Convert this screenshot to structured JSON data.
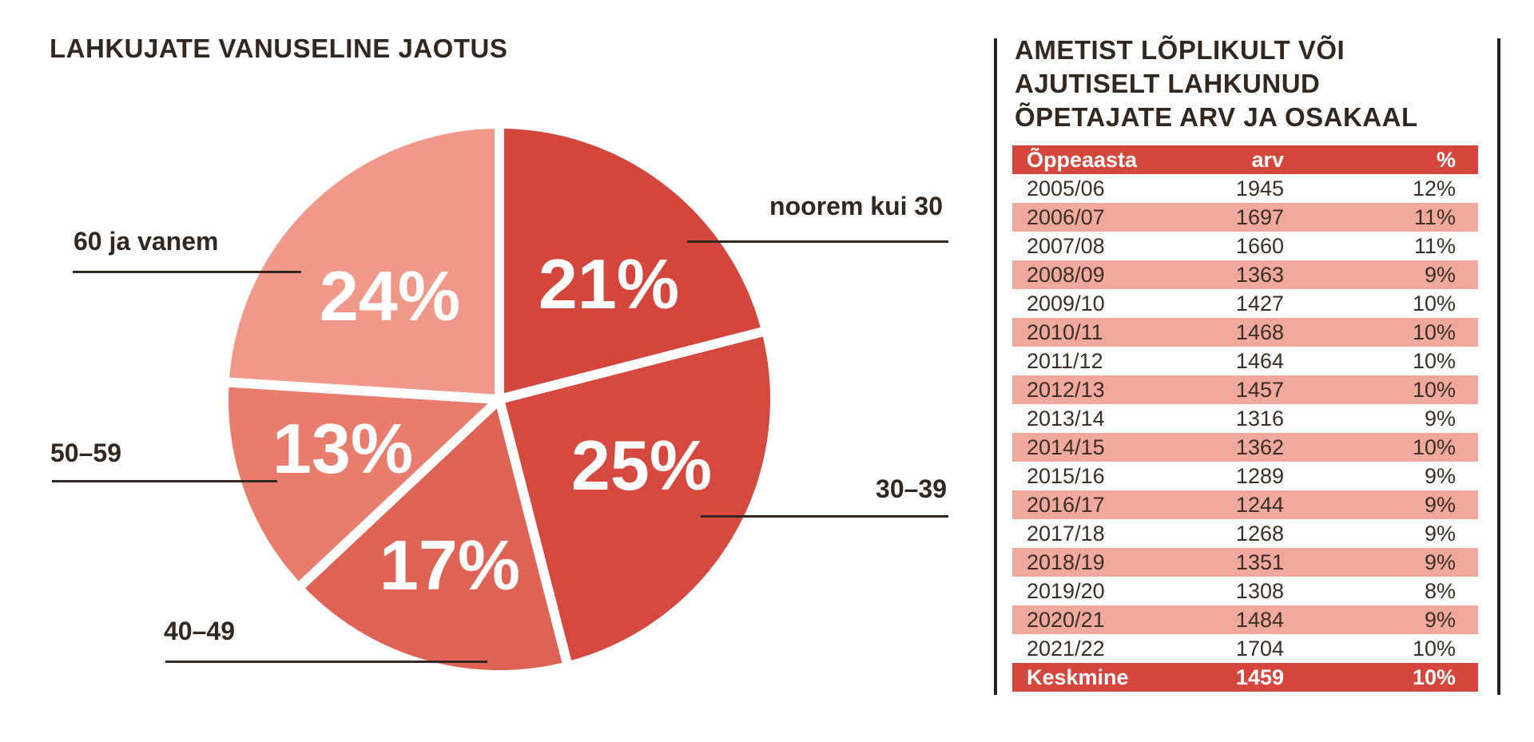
{
  "left_panel": {
    "title": "LAHKUJATE VANUSELINE JAOTUS"
  },
  "right_panel": {
    "title": "AMETIST LÕPLIKULT VÕI\nAJUTISELT LAHKUNUD\nÕPETAJATE ARV JA OSAKAAL"
  },
  "colors": {
    "accent_red": "#d5463d",
    "row_salmon": "#f0a99c",
    "text_dark": "#33281f",
    "slice_value_text": "#ffffff"
  },
  "chart_data": [
    {
      "type": "pie",
      "title": "LAHKUJATE VANUSELINE JAOTUS",
      "labels": [
        "noorem kui 30",
        "30–39",
        "40–49",
        "50–59",
        "60 ja vanem"
      ],
      "values": [
        21,
        25,
        17,
        13,
        24
      ],
      "unit": "%",
      "slice_colors": [
        "#d4453c",
        "#d6493f",
        "#df6355",
        "#e87d6e",
        "#f0998b"
      ],
      "start_angle_deg": 0,
      "direction": "clockwise",
      "legend_position": "outside-callouts"
    },
    {
      "type": "table",
      "title": "AMETIST LÕPLIKULT VÕI AJUTISELT LAHKUNUD ÕPETAJATE ARV JA OSAKAAL",
      "columns": [
        "Õppeaasta",
        "arv",
        "%"
      ],
      "rows": [
        [
          "2005/06",
          "1945",
          "12%"
        ],
        [
          "2006/07",
          "1697",
          "11%"
        ],
        [
          "2007/08",
          "1660",
          "11%"
        ],
        [
          "2008/09",
          "1363",
          "9%"
        ],
        [
          "2009/10",
          "1427",
          "10%"
        ],
        [
          "2010/11",
          "1468",
          "10%"
        ],
        [
          "2011/12",
          "1464",
          "10%"
        ],
        [
          "2012/13",
          "1457",
          "10%"
        ],
        [
          "2013/14",
          "1316",
          "9%"
        ],
        [
          "2014/15",
          "1362",
          "10%"
        ],
        [
          "2015/16",
          "1289",
          "9%"
        ],
        [
          "2016/17",
          "1244",
          "9%"
        ],
        [
          "2017/18",
          "1268",
          "9%"
        ],
        [
          "2018/19",
          "1351",
          "9%"
        ],
        [
          "2019/20",
          "1308",
          "8%"
        ],
        [
          "2020/21",
          "1484",
          "9%"
        ],
        [
          "2021/22",
          "1704",
          "10%"
        ]
      ],
      "footer": [
        "Keskmine",
        "1459",
        "10%"
      ]
    }
  ]
}
